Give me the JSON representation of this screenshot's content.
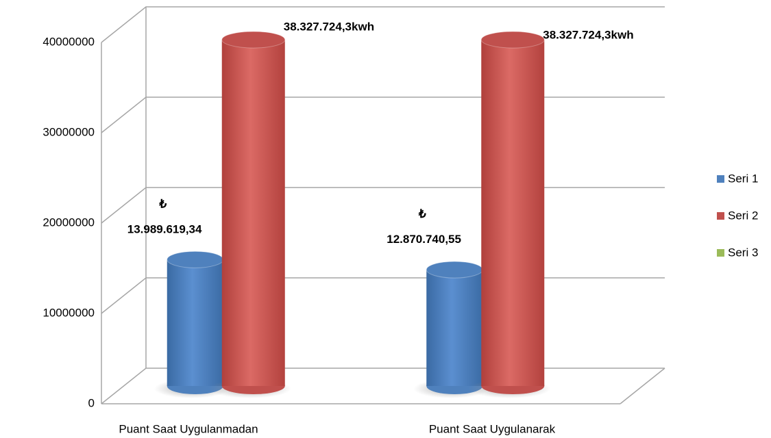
{
  "chart_data": {
    "type": "bar3d",
    "categories": [
      "Puant Saat Uygulanmadan",
      "Puant Saat Uygulanarak"
    ],
    "series": [
      {
        "name": "Seri 1",
        "color": "#4f81bd",
        "values": [
          13989619.34,
          12870740.55
        ],
        "value_labels": [
          "₺ 13.989.619,34",
          "₺ 12.870.740,55"
        ]
      },
      {
        "name": "Seri 2",
        "color": "#c0504d",
        "values": [
          38327724.3,
          38327724.3
        ],
        "value_labels": [
          "38.327.724,3kwh",
          "38.327.724,3kwh"
        ]
      },
      {
        "name": "Seri 3",
        "color": "#9bbb59",
        "values": [
          null,
          null
        ]
      }
    ],
    "ylim": [
      0,
      40000000
    ],
    "yticks": [
      0,
      10000000,
      20000000,
      30000000,
      40000000
    ],
    "grid": true,
    "legend": "right"
  }
}
